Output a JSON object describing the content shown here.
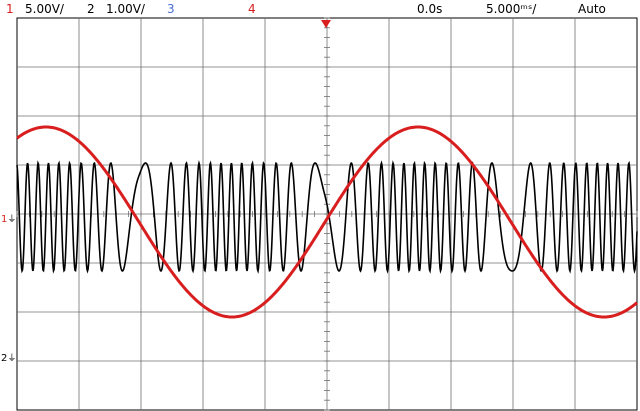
{
  "status_bar": {
    "ch1": {
      "number": "1",
      "scale": "5.00V/",
      "color": "#d81e1e"
    },
    "ch2": {
      "number": "2",
      "scale": "1.00V/",
      "color": "#000000"
    },
    "ch3": {
      "number": "3",
      "color": "#4a6fd6"
    },
    "ch4": {
      "number": "4",
      "color": "#d81e1e"
    },
    "time_offset": "0.0s",
    "time_scale": "5.000ᵐˢ/",
    "trigger_mode": "Auto"
  },
  "markers": {
    "ch1_ground": "1",
    "ch2_ground": "2"
  },
  "colors": {
    "grid": "#707070",
    "sine_trace": "#d81e1e",
    "fm_trace": "#000000",
    "trigger_marker": "#d81e1e"
  },
  "waveforms": {
    "ch1": {
      "shape": "sine",
      "periods_on_screen": 2
    },
    "ch2": {
      "shape": "chirp",
      "description": "swept-frequency signal"
    }
  }
}
